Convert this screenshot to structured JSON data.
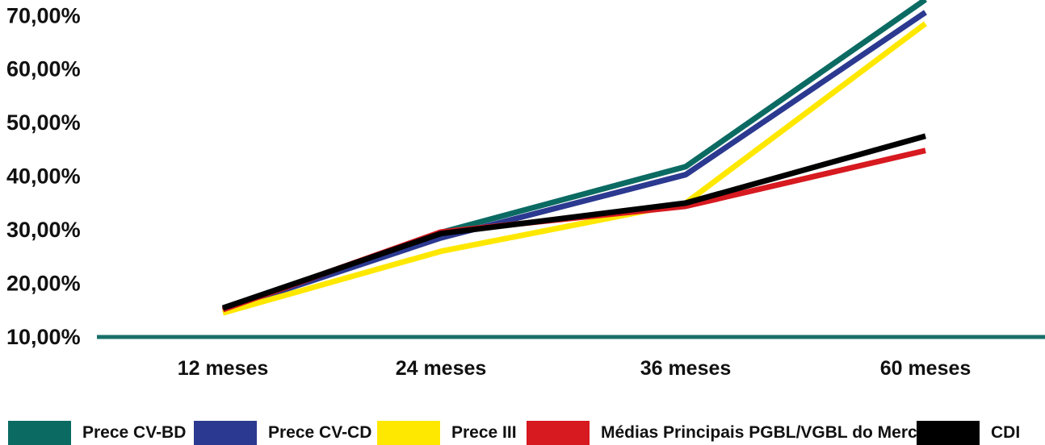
{
  "chart_data": {
    "type": "line",
    "categories": [
      "12 meses",
      "24 meses",
      "36 meses",
      "60 meses"
    ],
    "y_ticks": [
      "10,00%",
      "20,00%",
      "30,00%",
      "40,00%",
      "50,00%",
      "60,00%",
      "70,00%"
    ],
    "ylim": [
      10,
      72
    ],
    "grid": false,
    "legend_position": "bottom",
    "series": [
      {
        "name": "Prece CV-BD",
        "color": "#0b6b63",
        "values": [
          15.0,
          29.5,
          41.8,
          73.0
        ]
      },
      {
        "name": "Prece CV-CD",
        "color": "#2b3990",
        "values": [
          15.0,
          28.5,
          40.3,
          70.6
        ]
      },
      {
        "name": "Prece III",
        "color": "#ffe800",
        "values": [
          14.5,
          26.0,
          35.0,
          68.5
        ]
      },
      {
        "name": "Médias Principais PGBL/VGBL do Mercado",
        "color": "#d71920",
        "values": [
          15.1,
          29.6,
          34.4,
          44.8
        ]
      },
      {
        "name": "CDI",
        "color": "#000000",
        "values": [
          15.4,
          29.3,
          35.0,
          47.5
        ]
      }
    ],
    "baseline_color": "#1a6f6a"
  }
}
